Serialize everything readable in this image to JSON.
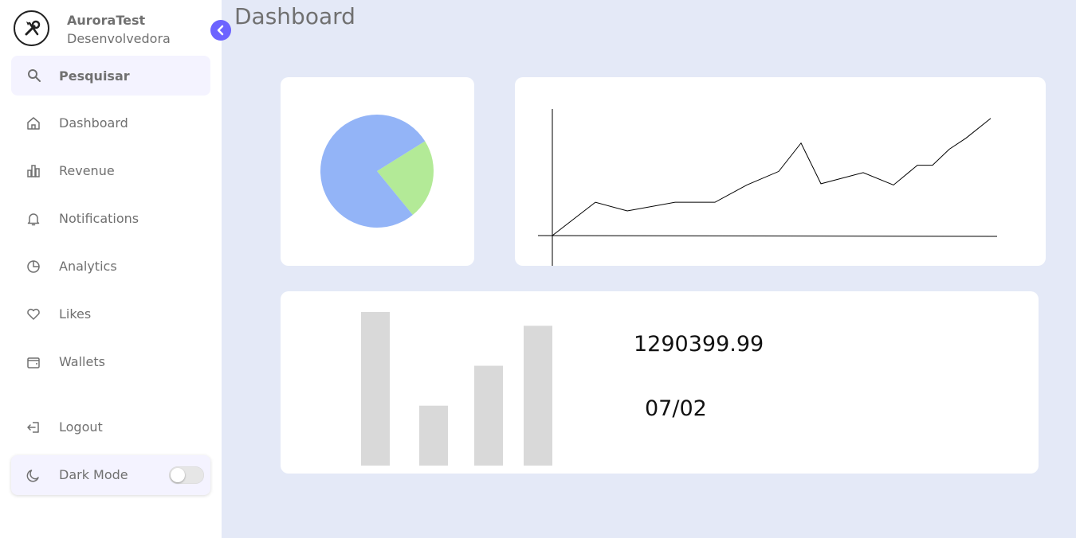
{
  "brand": {
    "name": "AuroraTest",
    "role": "Desenvolvedora",
    "logo_icon": "tools-icon"
  },
  "search": {
    "placeholder": "Pesquisar",
    "icon": "search-icon"
  },
  "nav": {
    "items": [
      {
        "label": "Dashboard",
        "icon": "home-icon"
      },
      {
        "label": "Revenue",
        "icon": "bar-chart-icon"
      },
      {
        "label": "Notifications",
        "icon": "bell-icon"
      },
      {
        "label": "Analytics",
        "icon": "pie-chart-icon"
      },
      {
        "label": "Likes",
        "icon": "heart-icon"
      },
      {
        "label": "Wallets",
        "icon": "wallet-icon"
      }
    ],
    "logout": {
      "label": "Logout",
      "icon": "logout-icon"
    }
  },
  "dark_mode": {
    "label": "Dark Mode",
    "icon": "moon-icon",
    "enabled": false
  },
  "page": {
    "title": "Dashboard"
  },
  "summary": {
    "value": "1290399.99",
    "date": "07/02"
  },
  "colors": {
    "accent": "#6c63ff",
    "main_bg": "#e4e9f7",
    "search_bg": "#f4f3ff",
    "pie_blue": "#93b4f7",
    "pie_green": "#b3ea97",
    "bar_gray": "#d9d9d9"
  },
  "chart_data": [
    {
      "type": "pie",
      "values": [
        77,
        23
      ],
      "colors": [
        "#93b4f7",
        "#b3ea97"
      ]
    },
    {
      "type": "line",
      "x": [
        0,
        1,
        2,
        3,
        4,
        5,
        6,
        7,
        8,
        9,
        10,
        11,
        12,
        13,
        14,
        15
      ],
      "values": [
        0,
        27,
        20,
        27,
        27,
        41,
        52,
        75,
        42,
        51,
        41,
        57,
        57,
        70,
        79,
        95
      ],
      "grid": false
    },
    {
      "type": "bar",
      "values": [
        100,
        39,
        65,
        91
      ],
      "ylim": [
        0,
        100
      ],
      "grid": false
    }
  ]
}
